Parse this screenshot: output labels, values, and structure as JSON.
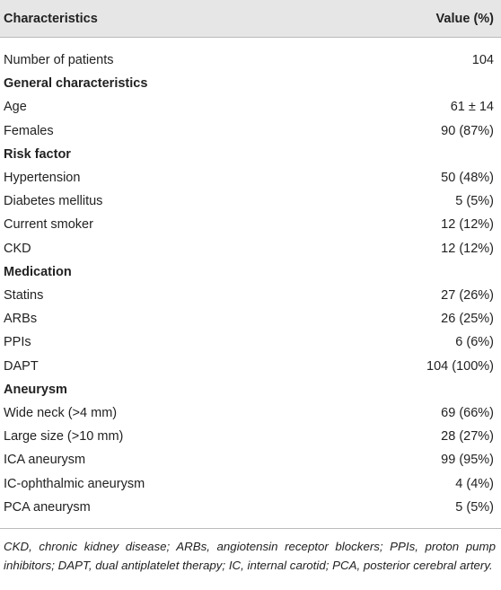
{
  "table": {
    "header": [
      "Characteristics",
      "Value (%)"
    ],
    "rows": [
      [
        "Number of patients",
        "104"
      ],
      [
        "General characteristics"
      ],
      [
        "Age",
        "61 ± 14"
      ],
      [
        "Females",
        "90 (87%)"
      ],
      [
        "Risk factor"
      ],
      [
        "Hypertension",
        "50 (48%)"
      ],
      [
        "Diabetes mellitus",
        "5 (5%)"
      ],
      [
        "Current smoker",
        "12 (12%)"
      ],
      [
        "CKD",
        "12 (12%)"
      ],
      [
        "Medication"
      ],
      [
        "Statins",
        "27 (26%)"
      ],
      [
        "ARBs",
        "26 (25%)"
      ],
      [
        "PPIs",
        "6 (6%)"
      ],
      [
        "DAPT",
        "104 (100%)"
      ],
      [
        "Aneurysm"
      ],
      [
        "Wide neck (>4 mm)",
        "69 (66%)"
      ],
      [
        "Large size (>10 mm)",
        "28 (27%)"
      ],
      [
        "ICA aneurysm",
        "99 (95%)"
      ],
      [
        "IC-ophthalmic aneurysm",
        "4 (4%)"
      ],
      [
        "PCA aneurysm",
        "5 (5%)"
      ]
    ],
    "footnote": "CKD, chronic kidney disease; ARBs, angiotensin receptor blockers; PPIs, proton pump inhibitors; DAPT, dual antiplatelet therapy; IC, internal carotid; PCA, posterior cerebral artery."
  }
}
